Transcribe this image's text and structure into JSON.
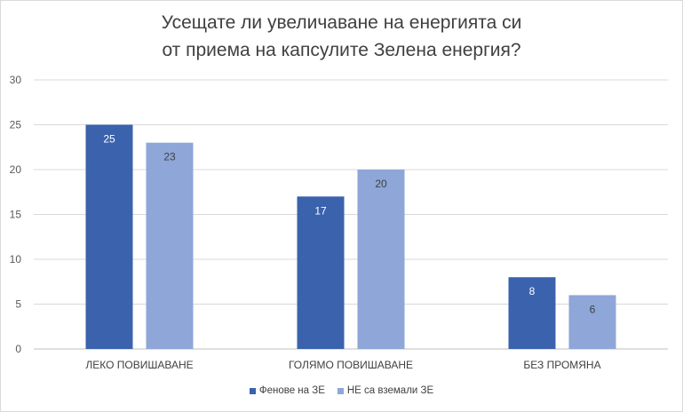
{
  "chart_data": {
    "type": "bar",
    "title_line1": "Усещате ли увеличаване на енергията си",
    "title_line2": "от приема на капсулите Зелена енергия?",
    "categories": [
      "ЛЕКО ПОВИШАВАНЕ",
      "ГОЛЯМО ПОВИШАВАНЕ",
      "БЕЗ ПРОМЯНА"
    ],
    "series": [
      {
        "name": "Фенове на ЗЕ",
        "values": [
          25,
          17,
          8
        ],
        "color": "#3a62ad",
        "label_color": "#ffffff"
      },
      {
        "name": "НЕ са вземали ЗЕ",
        "values": [
          23,
          20,
          6
        ],
        "color": "#8ea6d8",
        "label_color": "#404040"
      }
    ],
    "ylim": [
      0,
      30
    ],
    "yticks": [
      "0",
      "5",
      "10",
      "15",
      "20",
      "25",
      "30"
    ],
    "grid": true,
    "legend": "bottom"
  }
}
